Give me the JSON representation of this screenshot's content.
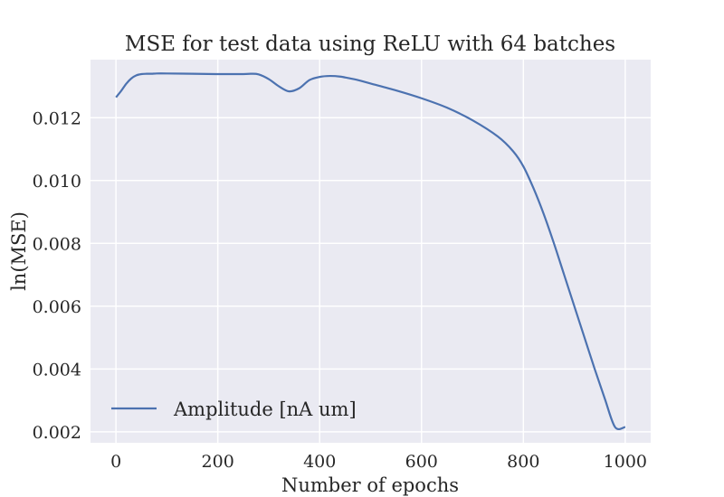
{
  "chart_data": {
    "type": "line",
    "title": "MSE for test data using ReLU with 64 batches",
    "xlabel": "Number of epochs",
    "ylabel": "ln(MSE)",
    "xlim": [
      -50,
      1050
    ],
    "ylim": [
      0.00165,
      0.01385
    ],
    "xticks": [
      0,
      200,
      400,
      600,
      800,
      1000
    ],
    "xtick_labels": [
      "0",
      "200",
      "400",
      "600",
      "800",
      "1000"
    ],
    "yticks": [
      0.002,
      0.004,
      0.006,
      0.008,
      0.01,
      0.012
    ],
    "ytick_labels": [
      "0.002",
      "0.004",
      "0.006",
      "0.008",
      "0.010",
      "0.012"
    ],
    "grid": true,
    "legend_position": "lower-left",
    "series": [
      {
        "name": "Amplitude [nA um]",
        "color": "#4c72b0",
        "x": [
          0,
          10,
          20,
          30,
          40,
          50,
          60,
          70,
          80,
          100,
          150,
          200,
          250,
          265,
          280,
          300,
          320,
          340,
          360,
          380,
          400,
          420,
          440,
          460,
          480,
          500,
          550,
          600,
          650,
          700,
          750,
          780,
          800,
          820,
          840,
          860,
          880,
          900,
          920,
          940,
          960,
          980,
          1000
        ],
        "y": [
          0.01265,
          0.01285,
          0.01308,
          0.01325,
          0.01335,
          0.01339,
          0.0134,
          0.0134,
          0.01341,
          0.01341,
          0.0134,
          0.01339,
          0.01339,
          0.0134,
          0.01338,
          0.01323,
          0.013,
          0.01284,
          0.01294,
          0.0132,
          0.0133,
          0.01333,
          0.01331,
          0.01325,
          0.01318,
          0.01309,
          0.01287,
          0.01262,
          0.01232,
          0.01192,
          0.0114,
          0.01093,
          0.01045,
          0.00975,
          0.00893,
          0.008,
          0.007,
          0.006,
          0.005,
          0.004,
          0.00305,
          0.00215,
          0.00215
        ]
      }
    ]
  }
}
